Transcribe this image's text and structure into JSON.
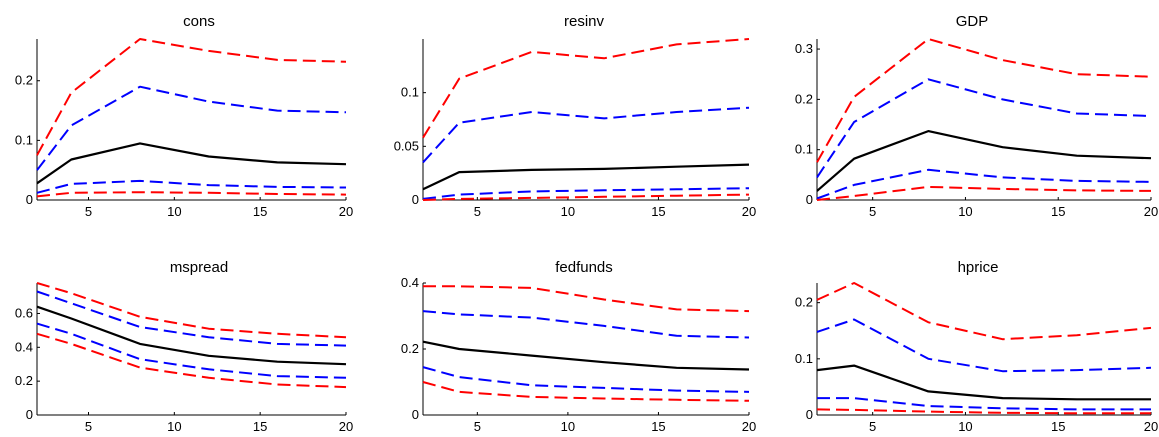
{
  "colors": {
    "point": "#000000",
    "inner": "#0000ff",
    "outer": "#ff0000",
    "axis": "#000000"
  },
  "chart_data": [
    {
      "type": "line",
      "title": "cons",
      "xlim": [
        2,
        20
      ],
      "ylim": [
        0,
        0.27
      ],
      "xticks": [
        5,
        10,
        15,
        20
      ],
      "yticks": [
        0,
        0.1,
        0.2
      ],
      "xtick_labels": [
        "5",
        "10",
        "15",
        "20"
      ],
      "ytick_labels": [
        "0",
        "0.1",
        "0.2"
      ],
      "x": [
        2,
        4,
        8,
        12,
        16,
        20
      ],
      "series": [
        {
          "role": "outer",
          "style": "dashed",
          "values": [
            0.075,
            0.18,
            0.27,
            0.25,
            0.235,
            0.232
          ]
        },
        {
          "role": "inner",
          "style": "dashed",
          "values": [
            0.05,
            0.125,
            0.19,
            0.165,
            0.15,
            0.147
          ]
        },
        {
          "role": "point",
          "style": "solid",
          "values": [
            0.028,
            0.068,
            0.095,
            0.073,
            0.063,
            0.06
          ]
        },
        {
          "role": "inner",
          "style": "dashed",
          "values": [
            0.012,
            0.027,
            0.032,
            0.025,
            0.022,
            0.021
          ]
        },
        {
          "role": "outer",
          "style": "dashed",
          "values": [
            0.006,
            0.012,
            0.013,
            0.012,
            0.01,
            0.009
          ]
        }
      ]
    },
    {
      "type": "line",
      "title": "resinv",
      "xlim": [
        2,
        20
      ],
      "ylim": [
        0,
        0.15
      ],
      "xticks": [
        5,
        10,
        15,
        20
      ],
      "yticks": [
        0,
        0.05,
        0.1
      ],
      "xtick_labels": [
        "5",
        "10",
        "15",
        "20"
      ],
      "ytick_labels": [
        "0",
        "0.05",
        "0.1"
      ],
      "x": [
        2,
        4,
        8,
        12,
        16,
        20
      ],
      "series": [
        {
          "role": "outer",
          "style": "dashed",
          "values": [
            0.058,
            0.113,
            0.138,
            0.132,
            0.145,
            0.15
          ]
        },
        {
          "role": "inner",
          "style": "dashed",
          "values": [
            0.035,
            0.072,
            0.082,
            0.076,
            0.082,
            0.086
          ]
        },
        {
          "role": "point",
          "style": "solid",
          "values": [
            0.01,
            0.026,
            0.028,
            0.029,
            0.031,
            0.033
          ]
        },
        {
          "role": "inner",
          "style": "dashed",
          "values": [
            0.001,
            0.005,
            0.008,
            0.009,
            0.01,
            0.011
          ]
        },
        {
          "role": "outer",
          "style": "dashed",
          "values": [
            0,
            0.001,
            0.002,
            0.003,
            0.004,
            0.005
          ]
        }
      ]
    },
    {
      "type": "line",
      "title": "GDP",
      "xlim": [
        2,
        20
      ],
      "ylim": [
        0,
        0.32
      ],
      "xticks": [
        5,
        10,
        15,
        20
      ],
      "yticks": [
        0,
        0.1,
        0.2,
        0.3
      ],
      "xtick_labels": [
        "5",
        "10",
        "15",
        "20"
      ],
      "ytick_labels": [
        "0",
        "0.1",
        "0.2",
        "0.3"
      ],
      "x": [
        2,
        4,
        8,
        12,
        16,
        20
      ],
      "series": [
        {
          "role": "outer",
          "style": "dashed",
          "values": [
            0.075,
            0.205,
            0.32,
            0.278,
            0.25,
            0.245
          ]
        },
        {
          "role": "inner",
          "style": "dashed",
          "values": [
            0.045,
            0.155,
            0.24,
            0.2,
            0.172,
            0.167
          ]
        },
        {
          "role": "point",
          "style": "solid",
          "values": [
            0.018,
            0.082,
            0.137,
            0.105,
            0.088,
            0.083
          ]
        },
        {
          "role": "inner",
          "style": "dashed",
          "values": [
            0.003,
            0.03,
            0.06,
            0.045,
            0.038,
            0.036
          ]
        },
        {
          "role": "outer",
          "style": "dashed",
          "values": [
            0,
            0.008,
            0.026,
            0.022,
            0.019,
            0.018
          ]
        }
      ]
    },
    {
      "type": "line",
      "title": "mspread",
      "xlim": [
        2,
        20
      ],
      "ylim": [
        0,
        0.78
      ],
      "xticks": [
        5,
        10,
        15,
        20
      ],
      "yticks": [
        0,
        0.2,
        0.4,
        0.6
      ],
      "xtick_labels": [
        "5",
        "10",
        "15",
        "20"
      ],
      "ytick_labels": [
        "0",
        "0.2",
        "0.4",
        "0.6"
      ],
      "x": [
        2,
        4,
        8,
        12,
        16,
        20
      ],
      "series": [
        {
          "role": "outer",
          "style": "dashed",
          "values": [
            0.78,
            0.72,
            0.58,
            0.51,
            0.48,
            0.46
          ]
        },
        {
          "role": "inner",
          "style": "dashed",
          "values": [
            0.73,
            0.66,
            0.52,
            0.46,
            0.42,
            0.41
          ]
        },
        {
          "role": "point",
          "style": "solid",
          "values": [
            0.64,
            0.57,
            0.42,
            0.35,
            0.315,
            0.3
          ]
        },
        {
          "role": "inner",
          "style": "dashed",
          "values": [
            0.54,
            0.48,
            0.33,
            0.27,
            0.23,
            0.22
          ]
        },
        {
          "role": "outer",
          "style": "dashed",
          "values": [
            0.48,
            0.42,
            0.28,
            0.22,
            0.18,
            0.165
          ]
        }
      ]
    },
    {
      "type": "line",
      "title": "fedfunds",
      "xlim": [
        2,
        20
      ],
      "ylim": [
        0,
        0.4
      ],
      "xticks": [
        5,
        10,
        15,
        20
      ],
      "yticks": [
        0,
        0.2,
        0.4
      ],
      "xtick_labels": [
        "5",
        "10",
        "15",
        "20"
      ],
      "ytick_labels": [
        "0",
        "0.2",
        "0.4"
      ],
      "x": [
        2,
        4,
        8,
        12,
        16,
        20
      ],
      "series": [
        {
          "role": "outer",
          "style": "dashed",
          "values": [
            0.39,
            0.39,
            0.385,
            0.35,
            0.32,
            0.315
          ]
        },
        {
          "role": "inner",
          "style": "dashed",
          "values": [
            0.315,
            0.305,
            0.295,
            0.27,
            0.24,
            0.235
          ]
        },
        {
          "role": "point",
          "style": "solid",
          "values": [
            0.222,
            0.2,
            0.18,
            0.16,
            0.143,
            0.138
          ]
        },
        {
          "role": "inner",
          "style": "dashed",
          "values": [
            0.145,
            0.115,
            0.09,
            0.082,
            0.074,
            0.07
          ]
        },
        {
          "role": "outer",
          "style": "dashed",
          "values": [
            0.1,
            0.07,
            0.055,
            0.05,
            0.046,
            0.043
          ]
        }
      ]
    },
    {
      "type": "line",
      "title": "hprice",
      "xlim": [
        2,
        20
      ],
      "ylim": [
        0,
        0.235
      ],
      "xticks": [
        5,
        10,
        15,
        20
      ],
      "yticks": [
        0,
        0.1,
        0.2
      ],
      "xtick_labels": [
        "5",
        "10",
        "15",
        "20"
      ],
      "ytick_labels": [
        "0",
        "0.1",
        "0.2"
      ],
      "x": [
        2,
        4,
        8,
        12,
        16,
        20
      ],
      "series": [
        {
          "role": "outer",
          "style": "dashed",
          "values": [
            0.205,
            0.235,
            0.165,
            0.135,
            0.142,
            0.155
          ]
        },
        {
          "role": "inner",
          "style": "dashed",
          "values": [
            0.148,
            0.17,
            0.1,
            0.078,
            0.08,
            0.084
          ]
        },
        {
          "role": "point",
          "style": "solid",
          "values": [
            0.08,
            0.088,
            0.042,
            0.03,
            0.028,
            0.028
          ]
        },
        {
          "role": "inner",
          "style": "dashed",
          "values": [
            0.03,
            0.03,
            0.016,
            0.012,
            0.01,
            0.01
          ]
        },
        {
          "role": "outer",
          "style": "dashed",
          "values": [
            0.01,
            0.009,
            0.006,
            0.004,
            0.003,
            0.003
          ]
        }
      ]
    }
  ]
}
